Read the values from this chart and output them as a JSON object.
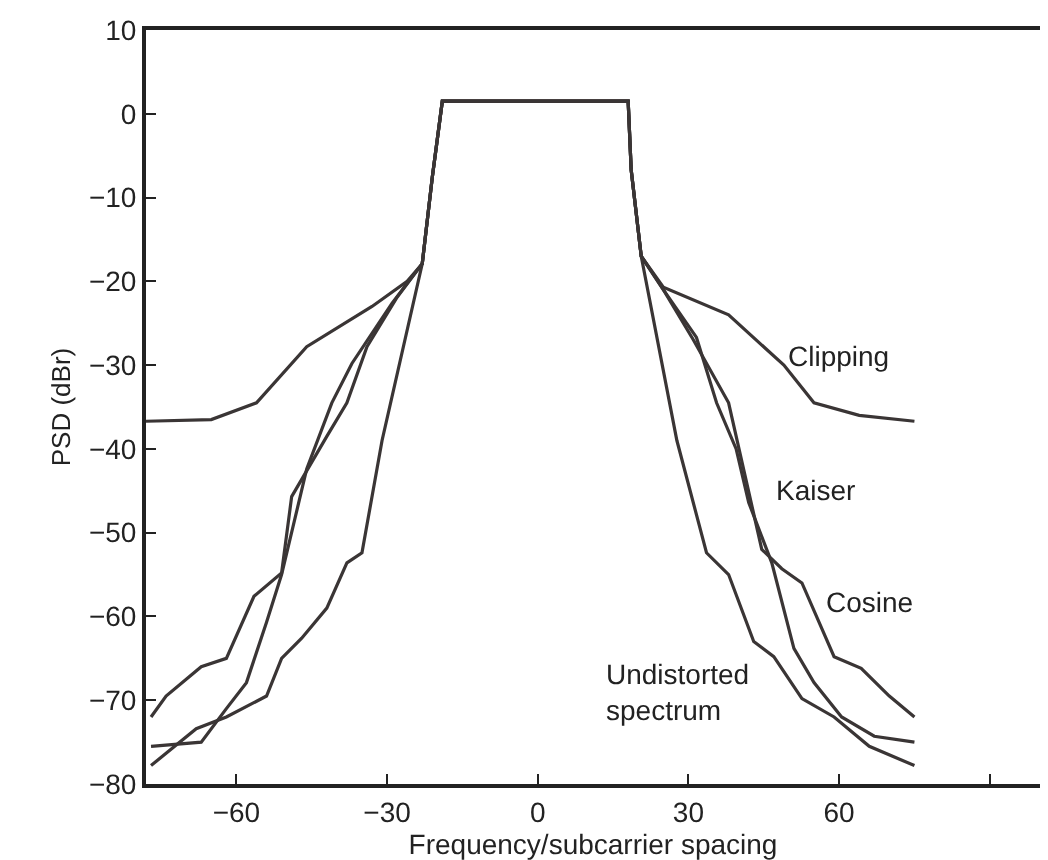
{
  "chart_data": {
    "type": "line",
    "xlabel": "Frequency/subcarrier spacing",
    "ylabel": "PSD (dBr)",
    "xlim": [
      -78,
      100
    ],
    "ylim": [
      -80,
      10
    ],
    "xticks": [
      -60,
      -30,
      0,
      30,
      60,
      {
        "value": 90,
        "label": null
      }
    ],
    "yticks": [
      -80,
      -70,
      -60,
      -50,
      -40,
      -30,
      -20,
      -10,
      0,
      10
    ],
    "marker": "none",
    "line_style": "solid",
    "series": [
      {
        "color": "#3a3535",
        "x": [
          -78,
          -65,
          -56,
          -46,
          -33,
          -26,
          -23,
          -21,
          -19,
          -10,
          0,
          10,
          18,
          18.6,
          20.6,
          25,
          38,
          49,
          55,
          64,
          75
        ],
        "values": [
          -36.7,
          -36.5,
          -34.5,
          -27.8,
          -23,
          -20,
          -17.9,
          -7.6,
          1.5,
          1.5,
          1.5,
          1.5,
          1.5,
          -6.7,
          -17,
          -20.7,
          -24,
          -30,
          -34.5,
          -36,
          -36.7
        ]
      },
      {
        "color": "#3a3535",
        "x": [
          -77,
          -67,
          -62,
          -58,
          -54,
          -51,
          -46,
          -41,
          -37,
          -29,
          -23,
          -21,
          -19,
          -10,
          0,
          10,
          18,
          18.6,
          20.6,
          25,
          31.6,
          35.6,
          39.5,
          42,
          46.6,
          51,
          55,
          60.5,
          67,
          75
        ],
        "values": [
          -75.5,
          -75,
          -71,
          -67.9,
          -60.7,
          -55,
          -42.4,
          -34.5,
          -29.8,
          -22.6,
          -17.9,
          -7.6,
          1.5,
          1.5,
          1.5,
          1.5,
          1.5,
          -6.7,
          -17,
          -21,
          -26.7,
          -34.5,
          -40,
          -46.4,
          -53.6,
          -63.8,
          -67.9,
          -72,
          -74.3,
          -75
        ]
      },
      {
        "color": "#3a3535",
        "x": [
          -77,
          -74,
          -67,
          -62,
          -56.5,
          -51,
          -49,
          -42,
          -38,
          -34,
          -28,
          -23,
          -21,
          -19,
          -10,
          0,
          10,
          18,
          18.6,
          20.6,
          25,
          31,
          38,
          44.6,
          48.6,
          52.6,
          59,
          64.4,
          70,
          75
        ],
        "values": [
          -72,
          -69.5,
          -66,
          -65,
          -57.6,
          -54.8,
          -45.7,
          -38.5,
          -34.5,
          -27.8,
          -21.9,
          -17.9,
          -7.6,
          1.5,
          1.5,
          1.5,
          1.5,
          1.5,
          -6.7,
          -17,
          -21,
          -27,
          -34.5,
          -52,
          -54.3,
          -56,
          -64.8,
          -66.2,
          -69.5,
          -72
        ]
      },
      {
        "color": "#3a3535",
        "x": [
          -77,
          -68,
          -62,
          -54,
          -51,
          -47,
          -42,
          -38,
          -35,
          -31,
          -23,
          -21,
          -19,
          -10,
          0,
          10,
          18,
          18.6,
          20.6,
          27.7,
          33.6,
          38,
          43,
          47,
          52.6,
          59,
          66,
          75
        ],
        "values": [
          -77.8,
          -73.4,
          -72,
          -69.5,
          -65,
          -62.6,
          -59,
          -53.6,
          -52.4,
          -39,
          -17.9,
          -7.6,
          1.5,
          1.5,
          1.5,
          1.5,
          1.5,
          -6.7,
          -17,
          -39,
          -52.4,
          -55,
          -63,
          -64.8,
          -69.8,
          -72,
          -75.5,
          -77.8
        ]
      }
    ],
    "annotations": [
      "Clipping",
      "Kaiser",
      "Cosine",
      "Undistorted\nspectrum"
    ]
  }
}
